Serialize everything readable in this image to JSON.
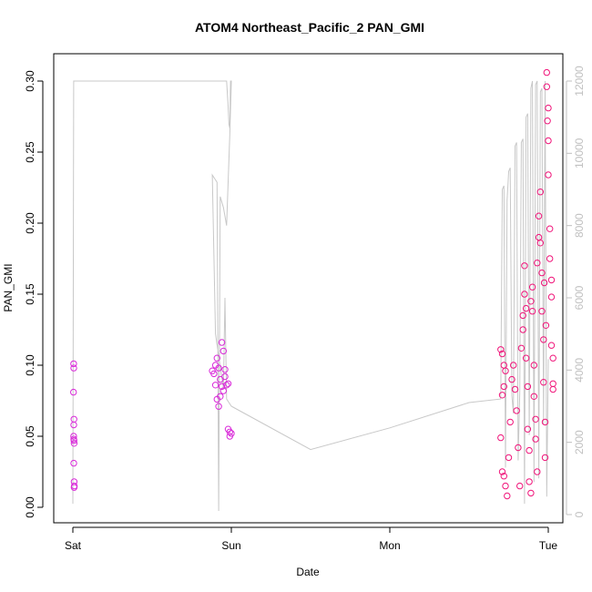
{
  "chart_data": {
    "type": "scatter",
    "title": "ATOM4 Northeast_Pacific_2 PAN_GMI",
    "xlabel": "Date",
    "ylabel": "PAN_GMI",
    "ylim": [
      0.0,
      0.305
    ],
    "y_ticks": [
      "0.00",
      "0.05",
      "0.10",
      "0.15",
      "0.20",
      "0.25",
      "0.30"
    ],
    "x_ticks": [
      "Sat",
      "Sun",
      "Mon",
      "Tue"
    ],
    "x_tick_days": [
      0,
      1,
      2,
      3
    ],
    "y2_ticks": [
      "0",
      "2000",
      "4000",
      "6000",
      "8000",
      "10000",
      "12000"
    ],
    "y2_tick_values": [
      0,
      2000,
      4000,
      6000,
      8000,
      10000,
      12000
    ],
    "colors": {
      "points": "#f0157a",
      "points_alt": "#d92ad9",
      "altitude_line": "#c8c8c8",
      "secondary_axis": "#c0c0c0"
    },
    "series": [
      {
        "values": [
          [
            0.005,
            0.101
          ],
          [
            0.006,
            0.098
          ],
          [
            0.004,
            0.081
          ],
          [
            0.007,
            0.062
          ],
          [
            0.006,
            0.058
          ],
          [
            0.005,
            0.05
          ],
          [
            0.006,
            0.048
          ],
          [
            0.007,
            0.047
          ],
          [
            0.008,
            0.045
          ],
          [
            0.006,
            0.031
          ],
          [
            0.008,
            0.018
          ],
          [
            0.009,
            0.015
          ],
          [
            0.008,
            0.014
          ],
          [
            0.88,
            0.096
          ],
          [
            0.89,
            0.094
          ],
          [
            0.9,
            0.1
          ],
          [
            0.91,
            0.105
          ],
          [
            0.92,
            0.098
          ],
          [
            0.93,
            0.09
          ],
          [
            0.9,
            0.086
          ],
          [
            0.91,
            0.076
          ],
          [
            0.92,
            0.071
          ],
          [
            0.93,
            0.078
          ],
          [
            0.94,
            0.116
          ],
          [
            0.95,
            0.11
          ],
          [
            0.96,
            0.092
          ],
          [
            0.97,
            0.086
          ],
          [
            0.96,
            0.097
          ],
          [
            0.94,
            0.085
          ],
          [
            0.95,
            0.082
          ],
          [
            0.98,
            0.055
          ],
          [
            0.99,
            0.053
          ],
          [
            0.99,
            0.05
          ],
          [
            1.0,
            0.052
          ],
          [
            0.98,
            0.087
          ],
          [
            2.7,
            0.111
          ],
          [
            2.71,
            0.108
          ],
          [
            2.72,
            0.1
          ],
          [
            2.73,
            0.096
          ],
          [
            2.72,
            0.085
          ],
          [
            2.71,
            0.079
          ],
          [
            2.7,
            0.049
          ],
          [
            2.71,
            0.025
          ],
          [
            2.72,
            0.022
          ],
          [
            2.73,
            0.015
          ],
          [
            2.74,
            0.008
          ],
          [
            2.75,
            0.035
          ],
          [
            2.76,
            0.06
          ],
          [
            2.77,
            0.09
          ],
          [
            2.78,
            0.1
          ],
          [
            2.79,
            0.083
          ],
          [
            2.8,
            0.068
          ],
          [
            2.81,
            0.042
          ],
          [
            2.82,
            0.015
          ],
          [
            2.83,
            0.112
          ],
          [
            2.84,
            0.125
          ],
          [
            2.84,
            0.135
          ],
          [
            2.85,
            0.17
          ],
          [
            2.85,
            0.15
          ],
          [
            2.86,
            0.14
          ],
          [
            2.86,
            0.105
          ],
          [
            2.87,
            0.085
          ],
          [
            2.87,
            0.055
          ],
          [
            2.88,
            0.04
          ],
          [
            2.88,
            0.018
          ],
          [
            2.89,
            0.01
          ],
          [
            2.89,
            0.145
          ],
          [
            2.9,
            0.155
          ],
          [
            2.9,
            0.138
          ],
          [
            2.91,
            0.1
          ],
          [
            2.91,
            0.078
          ],
          [
            2.92,
            0.062
          ],
          [
            2.92,
            0.048
          ],
          [
            2.93,
            0.025
          ],
          [
            2.93,
            0.172
          ],
          [
            2.94,
            0.19
          ],
          [
            2.94,
            0.205
          ],
          [
            2.95,
            0.222
          ],
          [
            2.95,
            0.186
          ],
          [
            2.96,
            0.165
          ],
          [
            2.96,
            0.138
          ],
          [
            2.97,
            0.118
          ],
          [
            2.97,
            0.088
          ],
          [
            2.98,
            0.06
          ],
          [
            2.98,
            0.035
          ],
          [
            2.99,
            0.306
          ],
          [
            2.99,
            0.296
          ],
          [
            3.0,
            0.281
          ],
          [
            3.0,
            0.258
          ],
          [
            3.0,
            0.234
          ],
          [
            3.01,
            0.196
          ],
          [
            3.01,
            0.175
          ],
          [
            3.02,
            0.16
          ],
          [
            3.02,
            0.148
          ],
          [
            3.02,
            0.114
          ],
          [
            3.03,
            0.105
          ],
          [
            3.03,
            0.087
          ],
          [
            3.03,
            0.083
          ],
          [
            2.995,
            0.272
          ],
          [
            2.985,
            0.128
          ],
          [
            2.975,
            0.158
          ]
        ]
      },
      {
        "values": [
          [
            0.0,
            300
          ],
          [
            0.005,
            12000
          ],
          [
            0.5,
            12000
          ],
          [
            0.97,
            12000
          ],
          [
            0.98,
            11300
          ],
          [
            0.985,
            10800
          ],
          [
            0.99,
            10700
          ],
          [
            0.995,
            12000
          ],
          [
            1.0,
            12000
          ],
          [
            0.99,
            10500
          ],
          [
            0.97,
            8000
          ],
          [
            0.95,
            8500
          ],
          [
            0.93,
            8800
          ],
          [
            0.92,
            100
          ],
          [
            0.91,
            9200
          ],
          [
            0.88,
            9400
          ],
          [
            0.9,
            5000
          ],
          [
            0.95,
            3500
          ],
          [
            0.96,
            6000
          ],
          [
            0.97,
            3200
          ],
          [
            1.0,
            3000
          ],
          [
            1.5,
            1800
          ],
          [
            2.0,
            2400
          ],
          [
            2.5,
            3100
          ],
          [
            2.7,
            3200
          ],
          [
            2.71,
            9000
          ],
          [
            2.72,
            9100
          ],
          [
            2.73,
            1300
          ],
          [
            2.74,
            8700
          ],
          [
            2.75,
            9500
          ],
          [
            2.76,
            9600
          ],
          [
            2.77,
            3300
          ],
          [
            2.78,
            2800
          ],
          [
            2.79,
            10200
          ],
          [
            2.8,
            10300
          ],
          [
            2.81,
            1500
          ],
          [
            2.82,
            3400
          ],
          [
            2.83,
            10300
          ],
          [
            2.84,
            10400
          ],
          [
            2.85,
            300
          ],
          [
            2.86,
            11000
          ],
          [
            2.87,
            11100
          ],
          [
            2.88,
            2200
          ],
          [
            2.89,
            11800
          ],
          [
            2.9,
            12000
          ],
          [
            2.91,
            900
          ],
          [
            2.92,
            11900
          ],
          [
            2.93,
            12000
          ],
          [
            2.94,
            1000
          ],
          [
            2.95,
            11700
          ],
          [
            2.96,
            11800
          ],
          [
            2.97,
            2500
          ],
          [
            2.98,
            12000
          ],
          [
            2.99,
            500
          ],
          [
            3.0,
            4300
          ]
        ]
      }
    ]
  }
}
